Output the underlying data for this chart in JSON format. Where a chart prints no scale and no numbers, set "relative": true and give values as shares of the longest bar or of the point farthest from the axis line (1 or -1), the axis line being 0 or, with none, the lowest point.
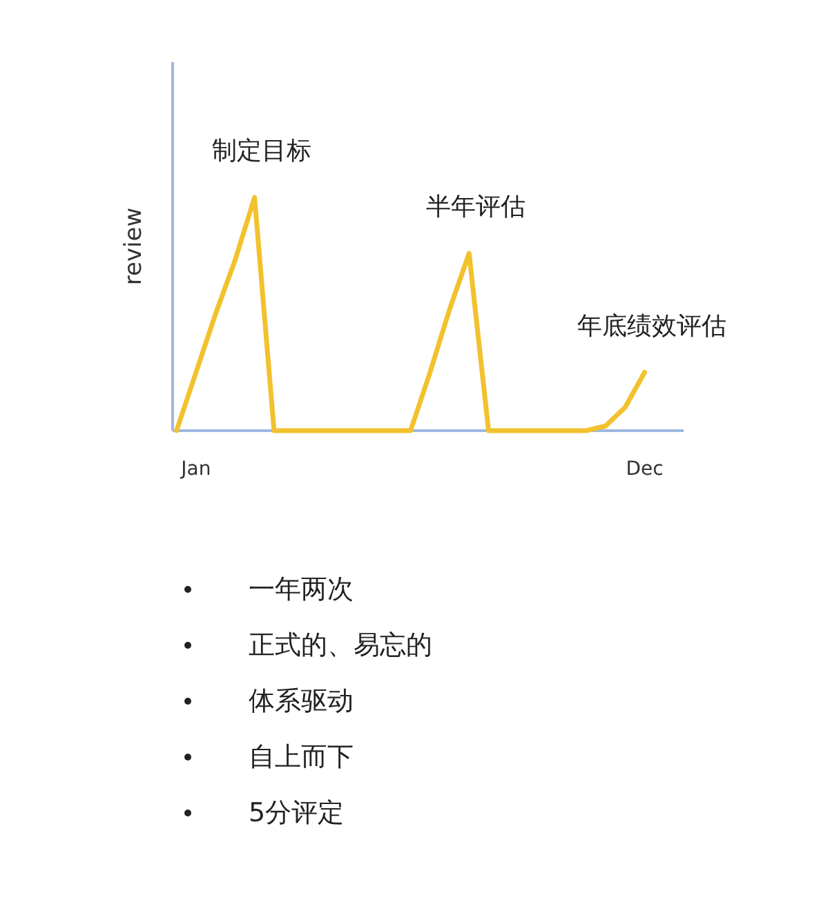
{
  "chart_data": {
    "type": "line",
    "relative": true,
    "ylabel": "review",
    "categories": [
      null,
      "Jan",
      null,
      null,
      null,
      null,
      null,
      null,
      null,
      null,
      null,
      null,
      null,
      null,
      null,
      null,
      null,
      null,
      null,
      null,
      null,
      null,
      null,
      null,
      "Dec"
    ],
    "series": [
      {
        "color": "#f2c22e",
        "values": [
          0,
          0.25,
          0.5,
          0.73,
          1,
          0,
          0,
          0,
          0,
          0,
          0,
          0,
          0,
          0.25,
          0.52,
          0.76,
          0,
          0,
          0,
          0,
          0,
          0,
          0.02,
          0.1,
          0.25
        ]
      }
    ],
    "annotations": [
      {
        "text": "制定目标",
        "y": 1
      },
      {
        "text": "半年评估",
        "y": 0.76
      },
      {
        "text": "年底绩效评估",
        "x": "Dec",
        "y": 0.25
      },
      "一年两次",
      "正式的、易忘的",
      "体系驱动",
      "自上而下",
      "5分评定"
    ]
  }
}
